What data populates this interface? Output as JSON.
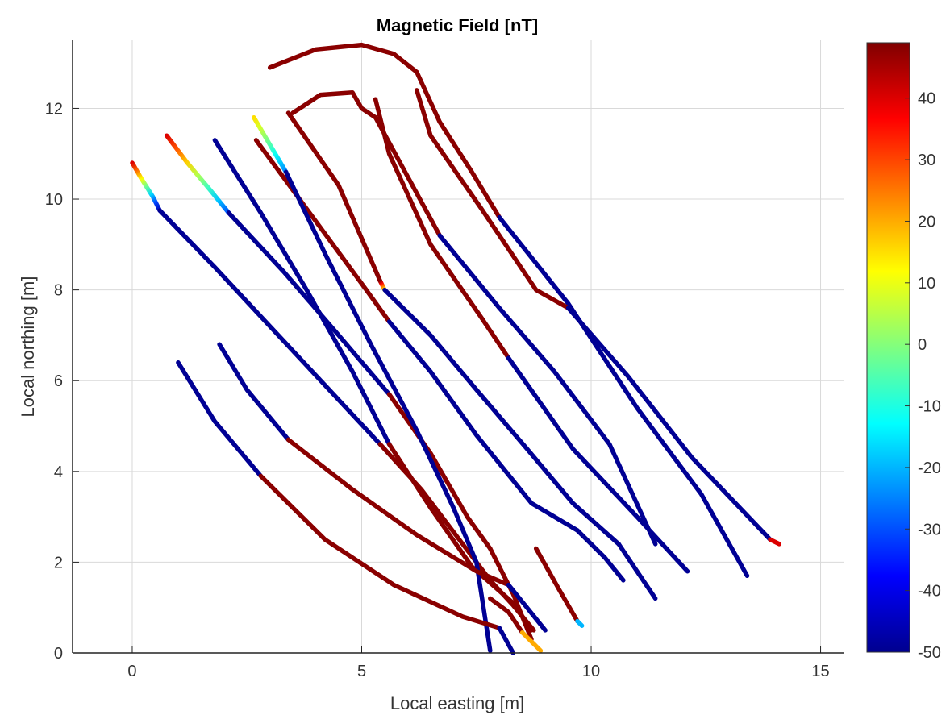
{
  "chart_data": {
    "type": "line",
    "title": "Magnetic Field [nT]",
    "xlabel": "Local easting [m]",
    "ylabel": "Local northing [m]",
    "xlim": [
      -1.3,
      15.5
    ],
    "ylim": [
      0,
      13.5
    ],
    "xticks": [
      0,
      5,
      10,
      15
    ],
    "yticks": [
      0,
      2,
      4,
      6,
      8,
      10,
      12
    ],
    "grid": true,
    "colorbar": {
      "colormap": "jet",
      "clim": [
        -50,
        49
      ],
      "ticks": [
        -50,
        -40,
        -30,
        -20,
        -10,
        0,
        10,
        20,
        30,
        40
      ]
    },
    "series": [
      {
        "segments": [
          {
            "x": [
              0.0,
              0.2,
              0.45,
              0.6
            ],
            "y": [
              10.8,
              10.45,
              10.05,
              9.75
            ],
            "value_start": 40,
            "value_end": -45
          },
          {
            "x": [
              0.6,
              1.8,
              3.0,
              4.2,
              5.4
            ],
            "y": [
              9.75,
              8.5,
              7.2,
              5.9,
              4.6
            ],
            "value": -48
          },
          {
            "x": [
              5.4,
              6.3,
              7.2,
              7.8
            ],
            "y": [
              4.6,
              3.6,
              2.4,
              1.6
            ],
            "value": 48
          },
          {
            "x": [
              7.8,
              8.3,
              8.75
            ],
            "y": [
              1.6,
              1.05,
              0.5
            ],
            "value": 48
          }
        ]
      },
      {
        "segments": [
          {
            "x": [
              0.75,
              1.2,
              1.7,
              2.1
            ],
            "y": [
              11.4,
              10.8,
              10.2,
              9.7
            ],
            "value_start": 40,
            "value_end": -30
          },
          {
            "x": [
              2.1,
              3.3,
              4.5,
              5.6
            ],
            "y": [
              9.7,
              8.4,
              7.0,
              5.7
            ],
            "value": -48
          },
          {
            "x": [
              5.6,
              6.5,
              7.3,
              7.8
            ],
            "y": [
              5.7,
              4.4,
              3.0,
              2.3
            ],
            "value": 48
          },
          {
            "x": [
              7.8,
              8.3,
              8.7
            ],
            "y": [
              2.3,
              1.3,
              0.3
            ],
            "value": 48
          }
        ]
      },
      {
        "segments": [
          {
            "x": [
              1.8,
              2.8,
              3.8,
              4.8,
              5.6
            ],
            "y": [
              11.3,
              9.7,
              8.0,
              6.2,
              4.6
            ],
            "value": -48
          },
          {
            "x": [
              5.6,
              6.5,
              7.4,
              8.3,
              8.7
            ],
            "y": [
              4.6,
              3.2,
              1.9,
              1.1,
              0.5
            ],
            "value": 48
          }
        ]
      },
      {
        "segments": [
          {
            "x": [
              2.7,
              3.5,
              4.3,
              5.1,
              5.6
            ],
            "y": [
              11.3,
              10.2,
              9.1,
              8.0,
              7.3
            ],
            "value": 48
          },
          {
            "x": [
              5.6,
              6.5,
              7.5,
              8.7,
              9.7
            ],
            "y": [
              7.3,
              6.2,
              4.8,
              3.3,
              2.7
            ],
            "value": -48
          },
          {
            "x": [
              9.7,
              10.3,
              10.7
            ],
            "y": [
              2.7,
              2.1,
              1.6
            ],
            "value": -48
          }
        ]
      },
      {
        "segments": [
          {
            "x": [
              2.65,
              3.0,
              3.35
            ],
            "y": [
              11.8,
              11.2,
              10.6
            ],
            "value_start": 15,
            "value_end": -25
          },
          {
            "x": [
              3.35,
              4.2,
              5.2,
              6.2,
              7.0
            ],
            "y": [
              10.6,
              8.8,
              6.8,
              4.9,
              3.2
            ],
            "value": -48
          },
          {
            "x": [
              7.0,
              7.5,
              7.8
            ],
            "y": [
              3.2,
              2.0,
              0.05
            ],
            "value": -48
          }
        ]
      },
      {
        "segments": [
          {
            "x": [
              3.4,
              4.5,
              5.4
            ],
            "y": [
              11.9,
              10.3,
              8.2
            ],
            "value": 48
          },
          {
            "x": [
              5.4,
              5.5
            ],
            "y": [
              8.2,
              8.0
            ],
            "value_start": 48,
            "value_end": 10
          },
          {
            "x": [
              5.5,
              6.5,
              7.5,
              8.6,
              9.6,
              10.6
            ],
            "y": [
              8.0,
              7.0,
              5.8,
              4.5,
              3.3,
              2.4
            ],
            "value": -48
          },
          {
            "x": [
              10.6,
              11.0,
              11.4
            ],
            "y": [
              2.4,
              1.8,
              1.2
            ],
            "value": -48
          }
        ]
      },
      {
        "segments": [
          {
            "x": [
              3.5,
              4.1,
              4.8,
              5.0,
              5.3
            ],
            "y": [
              11.9,
              12.3,
              12.35,
              12.0,
              11.8
            ],
            "value": 48
          },
          {
            "x": [
              5.3,
              6.0,
              6.7
            ],
            "y": [
              11.8,
              10.5,
              9.2
            ],
            "value": 48
          },
          {
            "x": [
              6.7,
              8.0,
              9.2,
              10.4,
              11.4
            ],
            "y": [
              9.2,
              7.6,
              6.2,
              4.6,
              2.4
            ],
            "value": -48
          }
        ]
      },
      {
        "segments": [
          {
            "x": [
              5.3,
              5.6,
              6.5,
              7.6,
              8.2
            ],
            "y": [
              12.2,
              11.0,
              9.0,
              7.4,
              6.5
            ],
            "value": 48
          },
          {
            "x": [
              8.2,
              9.6,
              11.0,
              12.1
            ],
            "y": [
              6.5,
              4.5,
              3.0,
              1.8
            ],
            "value": -48
          }
        ]
      },
      {
        "segments": [
          {
            "x": [
              3.0,
              4.0,
              5.0,
              5.7,
              6.2
            ],
            "y": [
              12.9,
              13.3,
              13.4,
              13.2,
              12.8
            ],
            "value": 48
          },
          {
            "x": [
              6.2,
              6.7,
              7.4,
              8.0
            ],
            "y": [
              12.8,
              11.7,
              10.6,
              9.6
            ],
            "value": 48
          },
          {
            "x": [
              8.0,
              9.5,
              11.0,
              12.4,
              13.4
            ],
            "y": [
              9.6,
              7.7,
              5.4,
              3.5,
              1.7
            ],
            "value": -48
          }
        ]
      },
      {
        "segments": [
          {
            "x": [
              6.2,
              6.5
            ],
            "y": [
              12.4,
              11.4
            ],
            "value": 48
          },
          {
            "x": [
              6.5,
              7.6,
              8.8,
              9.5
            ],
            "y": [
              11.4,
              9.8,
              8.0,
              7.6
            ],
            "value": 48
          },
          {
            "x": [
              9.5,
              10.8,
              12.2,
              13.9
            ],
            "y": [
              7.6,
              6.1,
              4.3,
              2.5
            ],
            "value": -48
          },
          {
            "x": [
              13.9,
              14.1
            ],
            "y": [
              2.5,
              2.4
            ],
            "value": 40
          }
        ]
      },
      {
        "segments": [
          {
            "x": [
              1.0,
              1.8,
              2.8
            ],
            "y": [
              6.4,
              5.1,
              3.9
            ],
            "value": -48
          },
          {
            "x": [
              2.8,
              4.2,
              5.7,
              7.2,
              8.0
            ],
            "y": [
              3.9,
              2.5,
              1.5,
              0.8,
              0.55
            ],
            "value": 48
          },
          {
            "x": [
              8.0,
              8.3
            ],
            "y": [
              0.55,
              0.0
            ],
            "value": -48
          }
        ]
      },
      {
        "segments": [
          {
            "x": [
              1.9,
              2.5,
              3.4
            ],
            "y": [
              6.8,
              5.8,
              4.7
            ],
            "value": -48
          },
          {
            "x": [
              3.4,
              4.8,
              6.2,
              7.5,
              8.2
            ],
            "y": [
              4.7,
              3.6,
              2.6,
              1.8,
              1.5
            ],
            "value": 48
          },
          {
            "x": [
              8.2,
              8.6,
              9.0
            ],
            "y": [
              1.5,
              1.0,
              0.5
            ],
            "value": -48
          }
        ]
      },
      {
        "segments": [
          {
            "x": [
              7.8,
              8.2,
              8.5
            ],
            "y": [
              1.2,
              0.9,
              0.45
            ],
            "value": 48
          },
          {
            "x": [
              8.5,
              8.9
            ],
            "y": [
              0.45,
              0.05
            ],
            "value": 20
          }
        ]
      },
      {
        "segments": [
          {
            "x": [
              8.8,
              9.3,
              9.7
            ],
            "y": [
              2.3,
              1.4,
              0.7
            ],
            "value": 48
          },
          {
            "x": [
              9.7,
              9.8
            ],
            "y": [
              0.7,
              0.6
            ],
            "value": -20
          }
        ]
      }
    ]
  }
}
